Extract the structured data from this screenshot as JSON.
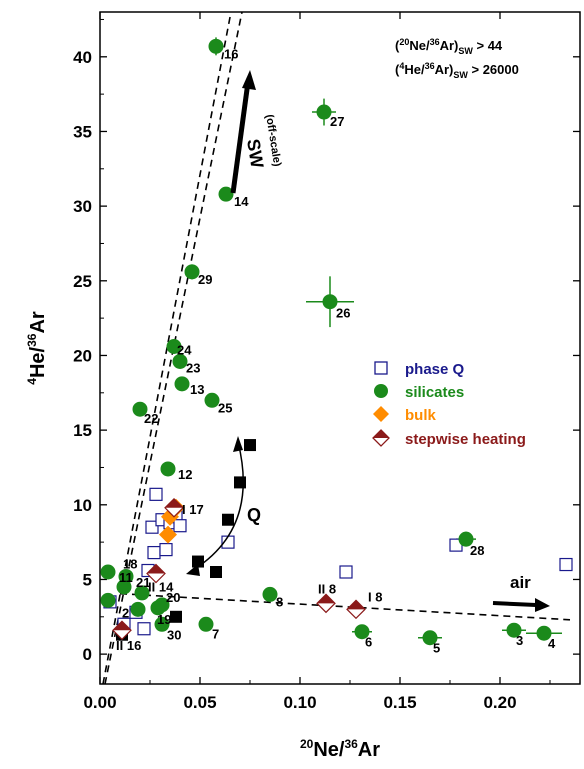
{
  "chart_data": {
    "type": "scatter",
    "xlim": [
      0,
      0.24
    ],
    "ylim": [
      -2,
      43
    ],
    "x_ticks": [
      "0.00",
      "0.05",
      "0.10",
      "0.15",
      "0.20"
    ],
    "x_tick_values": [
      0,
      0.05,
      0.1,
      0.15,
      0.2
    ],
    "y_ticks": [
      "0",
      "5",
      "10",
      "15",
      "20",
      "25",
      "30",
      "35",
      "40"
    ],
    "y_tick_values": [
      0,
      5,
      10,
      15,
      20,
      25,
      30,
      35,
      40
    ],
    "xlabel": {
      "sup": "20",
      "a": "Ne/",
      "sup2": "36",
      "b": "Ar"
    },
    "ylabel": {
      "sup": "4",
      "a": "He/",
      "sup2": "36",
      "b": "Ar"
    },
    "annotation_box": {
      "line1": {
        "open": "(",
        "sup": "20",
        "a": "Ne/",
        "sup2": "36",
        "b": "Ar)",
        "sub": "SW",
        "c": " > 44"
      },
      "line2": {
        "open": "(",
        "sup": "4",
        "a": "He/",
        "sup2": "36",
        "b": "Ar)",
        "sub": "SW",
        "c": " > 26000"
      }
    },
    "text_labels": {
      "sw": "SW",
      "offscale": "(off-scale)",
      "q": "Q",
      "air": "air"
    },
    "legend": [
      {
        "label": "phase Q",
        "marker": "open-square",
        "color": "#1a1a8c"
      },
      {
        "label": "silicates",
        "marker": "filled-circle",
        "color": "#1b8a1b"
      },
      {
        "label": "bulk",
        "marker": "diamond",
        "color": "#ff8c00"
      },
      {
        "label": "stepwise heating",
        "marker": "half-diamond",
        "color": "#8b1a1a"
      }
    ],
    "series": [
      {
        "name": "phase Q",
        "color": "#1a1a8c",
        "points": [
          [
            0.005,
            3.5
          ],
          [
            0.012,
            2.0
          ],
          [
            0.018,
            2.8
          ],
          [
            0.022,
            1.7
          ],
          [
            0.024,
            5.6
          ],
          [
            0.026,
            8.5
          ],
          [
            0.027,
            6.8
          ],
          [
            0.028,
            10.7
          ],
          [
            0.031,
            9.0
          ],
          [
            0.033,
            7.0
          ],
          [
            0.035,
            8.8
          ],
          [
            0.038,
            9.2
          ],
          [
            0.04,
            8.6
          ],
          [
            0.064,
            7.5
          ],
          [
            0.123,
            5.5
          ],
          [
            0.178,
            7.3
          ],
          [
            0.233,
            6.0
          ]
        ]
      },
      {
        "name": "filled black",
        "color": "#000000",
        "points": [
          [
            0.011,
            1.3
          ],
          [
            0.038,
            2.5
          ],
          [
            0.049,
            6.2
          ],
          [
            0.058,
            5.5
          ],
          [
            0.064,
            9.0
          ],
          [
            0.07,
            11.5
          ],
          [
            0.075,
            14.0
          ]
        ]
      },
      {
        "name": "silicates",
        "color": "#1b8a1b",
        "points": [
          {
            "x": 0.058,
            "y": 40.7,
            "label": "16"
          },
          {
            "x": 0.112,
            "y": 36.3,
            "label": "27"
          },
          {
            "x": 0.063,
            "y": 30.8,
            "label": "14"
          },
          {
            "x": 0.046,
            "y": 25.6,
            "label": "29"
          },
          {
            "x": 0.115,
            "y": 23.6,
            "label": "26"
          },
          {
            "x": 0.037,
            "y": 20.6,
            "label": "24"
          },
          {
            "x": 0.04,
            "y": 19.6,
            "label": "23"
          },
          {
            "x": 0.041,
            "y": 18.1,
            "label": "13"
          },
          {
            "x": 0.056,
            "y": 17.0,
            "label": "25"
          },
          {
            "x": 0.02,
            "y": 16.4,
            "label": "22"
          },
          {
            "x": 0.034,
            "y": 12.4,
            "label": "12"
          },
          {
            "x": 0.183,
            "y": 7.7,
            "label": "28"
          },
          {
            "x": 0.085,
            "y": 4.0,
            "label": "8"
          },
          {
            "x": 0.131,
            "y": 1.5,
            "label": "6"
          },
          {
            "x": 0.165,
            "y": 1.1,
            "label": "5"
          },
          {
            "x": 0.207,
            "y": 1.6,
            "label": "3"
          },
          {
            "x": 0.222,
            "y": 1.4,
            "label": "4"
          },
          {
            "x": 0.053,
            "y": 2.0,
            "label": "7"
          },
          {
            "x": 0.031,
            "y": 2.0,
            "label": "30"
          },
          {
            "x": 0.029,
            "y": 3.1,
            "label": "19"
          },
          {
            "x": 0.031,
            "y": 3.3,
            "label": "20"
          },
          {
            "x": 0.021,
            "y": 4.1,
            "label": "21"
          },
          {
            "x": 0.013,
            "y": 5.2,
            "label": "18"
          },
          {
            "x": 0.012,
            "y": 4.5,
            "label": "11"
          },
          {
            "x": 0.004,
            "y": 5.5,
            "label": ""
          },
          {
            "x": 0.004,
            "y": 3.6,
            "label": ""
          },
          {
            "x": 0.019,
            "y": 3.0,
            "label": "2"
          }
        ]
      },
      {
        "name": "bulk",
        "color": "#ff8c00",
        "points": [
          [
            0.034,
            8.0
          ],
          [
            0.035,
            9.2
          ],
          [
            0.038,
            9.8
          ]
        ]
      },
      {
        "name": "stepwise heating",
        "color": "#8b1a1a",
        "points": [
          {
            "x": 0.037,
            "y": 9.8,
            "label": "I 17"
          },
          {
            "x": 0.028,
            "y": 5.4,
            "label": "II 14"
          },
          {
            "x": 0.011,
            "y": 1.6,
            "label": "II 16"
          },
          {
            "x": 0.113,
            "y": 3.4,
            "label": "II 8"
          },
          {
            "x": 0.128,
            "y": 3.0,
            "label": "I 8"
          }
        ]
      }
    ]
  }
}
